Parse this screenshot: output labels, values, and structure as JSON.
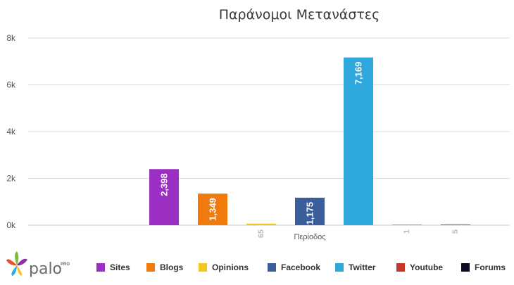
{
  "brand": {
    "name": "palo",
    "suffix": "PRO"
  },
  "chart_data": {
    "type": "bar",
    "title": "Παράνομοι Μετανάστες",
    "xlabel": "Περίοδος",
    "ylabel": "",
    "ylim": [
      0,
      8000
    ],
    "yticks": [
      {
        "value": 0,
        "label": "0k"
      },
      {
        "value": 2000,
        "label": "2k"
      },
      {
        "value": 4000,
        "label": "4k"
      },
      {
        "value": 6000,
        "label": "6k"
      },
      {
        "value": 8000,
        "label": "8k"
      }
    ],
    "grid": true,
    "legend_position": "bottom",
    "series": [
      {
        "name": "Sites",
        "value": 2398,
        "label": "2,398",
        "color": "#9b2fc4"
      },
      {
        "name": "Blogs",
        "value": 1349,
        "label": "1,349",
        "color": "#f07a0c"
      },
      {
        "name": "Opinions",
        "value": 65,
        "label": "65",
        "color": "#f6c71b"
      },
      {
        "name": "Facebook",
        "value": 1175,
        "label": "1,175",
        "color": "#3a5e9c"
      },
      {
        "name": "Twitter",
        "value": 7169,
        "label": "7,169",
        "color": "#2fa8de"
      },
      {
        "name": "Youtube",
        "value": 1,
        "label": "1",
        "color": "#c8352b"
      },
      {
        "name": "Forums",
        "value": 5,
        "label": "5",
        "color": "#0b0b22"
      }
    ]
  }
}
